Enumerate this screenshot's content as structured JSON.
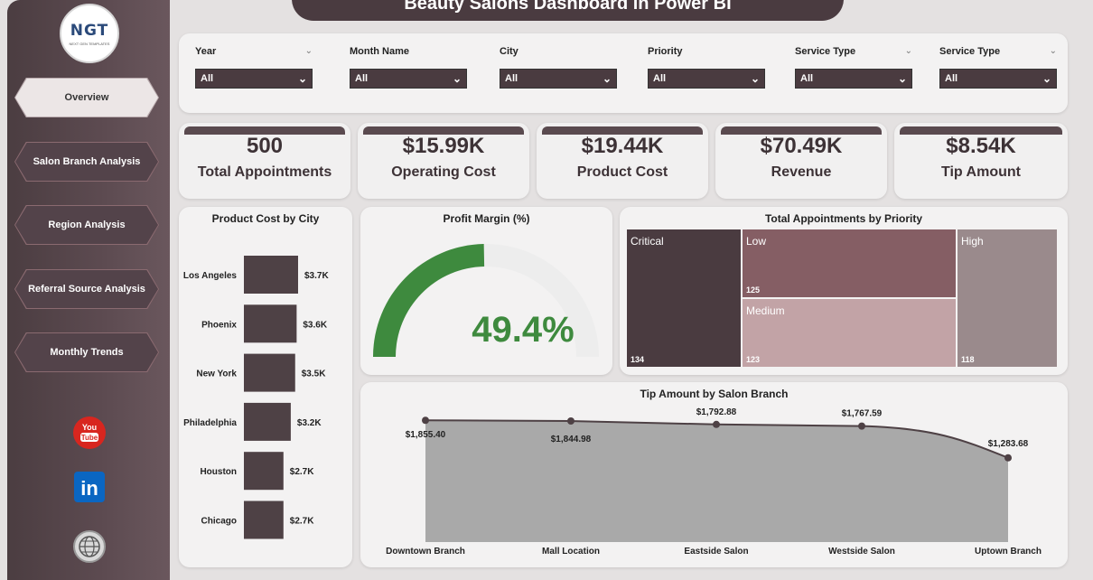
{
  "header": {
    "title": "Beauty Salons Dashboard in Power BI"
  },
  "logo": {
    "text": "NGT",
    "subtext": "NEXT GEN TEMPLATES"
  },
  "nav": [
    {
      "label": "Overview"
    },
    {
      "label": "Salon Branch Analysis"
    },
    {
      "label": "Region Analysis"
    },
    {
      "label": "Referral Source Analysis"
    },
    {
      "label": "Monthly Trends"
    }
  ],
  "social": {
    "youtube": "You Tube",
    "linkedin": "in"
  },
  "filters": [
    {
      "label": "Year",
      "value": "All"
    },
    {
      "label": "Month Name",
      "value": "All"
    },
    {
      "label": "City",
      "value": "All"
    },
    {
      "label": "Priority",
      "value": "All"
    },
    {
      "label": "Service Type",
      "value": "All"
    },
    {
      "label": "Service Type",
      "value": "All"
    }
  ],
  "kpis": [
    {
      "value": "500",
      "label": "Total Appointments"
    },
    {
      "value": "$15.99K",
      "label": "Operating Cost"
    },
    {
      "value": "$19.44K",
      "label": "Product Cost"
    },
    {
      "value": "$70.49K",
      "label": "Revenue"
    },
    {
      "value": "$8.54K",
      "label": "Tip Amount"
    }
  ],
  "colors": {
    "dark": "#4a3b40",
    "bar": "#4e4145",
    "gauge": "#3e8a3e",
    "gauge_bg": "#ededed",
    "area": "#a9a9a9"
  },
  "product_cost_chart": {
    "title": "Product Cost by City",
    "chart_data": {
      "type": "bar",
      "orientation": "horizontal",
      "categories": [
        "Los Angeles",
        "Phoenix",
        "New York",
        "Philadelphia",
        "Houston",
        "Chicago"
      ],
      "values": [
        3.7,
        3.6,
        3.5,
        3.2,
        2.7,
        2.7
      ],
      "value_labels": [
        "$3.7K",
        "$3.6K",
        "$3.5K",
        "$3.2K",
        "$2.7K",
        "$2.7K"
      ],
      "unit": "K USD"
    }
  },
  "profit_margin": {
    "title": "Profit Margin (%)",
    "value": 49.4,
    "display": "49.4%"
  },
  "priority_treemap": {
    "title": "Total Appointments by Priority",
    "items": [
      {
        "label": "Critical",
        "value": 134,
        "display": "134",
        "color": "#4a3b40"
      },
      {
        "label": "Low",
        "value": 125,
        "display": "125",
        "color": "#855e64"
      },
      {
        "label": "Medium",
        "value": 123,
        "display": "123",
        "color": "#c2a3a6"
      },
      {
        "label": "High",
        "value": 118,
        "display": "118",
        "color": "#9a8a8c"
      }
    ]
  },
  "tip_chart": {
    "title": "Tip Amount by Salon Branch",
    "chart_data": {
      "type": "area",
      "categories": [
        "Downtown Branch",
        "Mall Location",
        "Eastside Salon",
        "Westside Salon",
        "Uptown Branch"
      ],
      "values": [
        1855.4,
        1844.98,
        1792.88,
        1767.59,
        1283.68
      ],
      "value_labels": [
        "$1,855.40",
        "$1,844.98",
        "$1,792.88",
        "$1,767.59",
        "$1,283.68"
      ],
      "ylim": [
        0,
        1900
      ]
    }
  }
}
